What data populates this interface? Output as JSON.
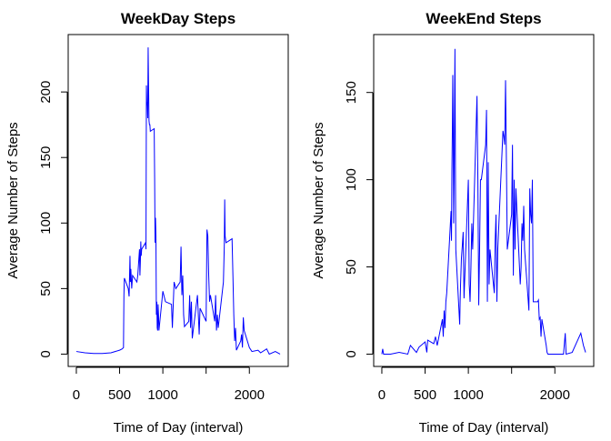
{
  "chart_data": [
    {
      "type": "line",
      "title": "WeekDay Steps",
      "x_label": "Time of Day (interval)",
      "y_label": "Average Number of Steps",
      "color": "#0000ff",
      "x": [
        0,
        100,
        200,
        300,
        400,
        500,
        530,
        545,
        550,
        555,
        600,
        610,
        620,
        625,
        630,
        640,
        650,
        700,
        710,
        720,
        730,
        735,
        740,
        745,
        750,
        755,
        800,
        805,
        810,
        815,
        820,
        825,
        830,
        835,
        840,
        845,
        850,
        855,
        900,
        905,
        910,
        915,
        920,
        925,
        930,
        935,
        940,
        945,
        950,
        955,
        1000,
        1030,
        1100,
        1110,
        1130,
        1150,
        1200,
        1210,
        1220,
        1230,
        1240,
        1250,
        1300,
        1310,
        1320,
        1330,
        1340,
        1400,
        1410,
        1420,
        1430,
        1500,
        1510,
        1520,
        1530,
        1540,
        1550,
        1600,
        1610,
        1620,
        1630,
        1640,
        1700,
        1710,
        1715,
        1720,
        1730,
        1800,
        1810,
        1820,
        1830,
        1840,
        1850,
        1900,
        1910,
        1920,
        1930,
        1940,
        2000,
        2030,
        2100,
        2130,
        2200,
        2230,
        2300,
        2355
      ],
      "values": [
        2,
        1,
        0.5,
        0.5,
        1,
        3,
        4,
        5,
        45,
        58,
        50,
        44,
        75,
        55,
        65,
        50,
        60,
        55,
        60,
        70,
        80,
        60,
        70,
        86,
        75,
        80,
        85,
        80,
        205,
        190,
        192,
        180,
        234,
        205,
        178,
        175,
        175,
        170,
        172,
        135,
        85,
        104,
        90,
        30,
        40,
        20,
        18,
        38,
        30,
        18,
        48,
        40,
        38,
        20,
        55,
        50,
        55,
        82,
        45,
        60,
        30,
        21,
        25,
        45,
        20,
        40,
        12,
        45,
        30,
        15,
        35,
        25,
        95,
        90,
        60,
        40,
        45,
        25,
        45,
        18,
        30,
        20,
        55,
        82,
        118,
        90,
        85,
        88,
        60,
        30,
        10,
        20,
        3,
        10,
        15,
        5,
        28,
        18,
        5,
        2,
        3,
        1,
        4,
        0,
        2,
        0
      ],
      "xlim": [
        -94.2,
        2449.2
      ],
      "xticks": [
        0,
        500,
        1000,
        {
          "value": 1500,
          "label": null
        },
        2000
      ],
      "ylim": [
        -9.4,
        243.8
      ],
      "yticks": [
        0,
        50,
        100,
        150,
        200
      ]
    },
    {
      "type": "line",
      "title": "WeekEnd Steps",
      "x_label": "Time of Day (interval)",
      "y_label": "Average Number of Steps",
      "color": "#0000ff",
      "x": [
        0,
        10,
        20,
        100,
        200,
        300,
        330,
        400,
        430,
        500,
        520,
        530,
        600,
        620,
        640,
        700,
        710,
        720,
        730,
        740,
        750,
        800,
        805,
        810,
        815,
        820,
        825,
        830,
        835,
        840,
        845,
        850,
        855,
        900,
        905,
        910,
        920,
        930,
        940,
        950,
        1000,
        1010,
        1020,
        1030,
        1040,
        1050,
        1100,
        1110,
        1120,
        1130,
        1140,
        1150,
        1200,
        1210,
        1220,
        1230,
        1240,
        1250,
        1300,
        1310,
        1320,
        1330,
        1340,
        1400,
        1410,
        1420,
        1430,
        1440,
        1450,
        1500,
        1510,
        1520,
        1530,
        1540,
        1550,
        1600,
        1610,
        1620,
        1630,
        1640,
        1650,
        1700,
        1710,
        1720,
        1730,
        1740,
        1750,
        1800,
        1810,
        1820,
        1830,
        1840,
        1850,
        1900,
        1910,
        1920,
        2000,
        2100,
        2120,
        2130,
        2200,
        2300,
        2330,
        2355
      ],
      "values": [
        0,
        3,
        0,
        0,
        1,
        0,
        5,
        1,
        4,
        7,
        1,
        8,
        6,
        10,
        5,
        20,
        10,
        25,
        15,
        30,
        35,
        82,
        65,
        105,
        128,
        160,
        130,
        75,
        100,
        140,
        175,
        115,
        60,
        17,
        30,
        40,
        55,
        62,
        70,
        32,
        100,
        40,
        30,
        50,
        75,
        60,
        148,
        100,
        28,
        60,
        100,
        100,
        120,
        140,
        30,
        110,
        40,
        60,
        35,
        65,
        80,
        30,
        60,
        128,
        125,
        120,
        157,
        110,
        60,
        80,
        120,
        45,
        100,
        60,
        95,
        40,
        50,
        75,
        65,
        85,
        60,
        25,
        95,
        80,
        75,
        100,
        30,
        30,
        31,
        20,
        21,
        10,
        20,
        5,
        1,
        0,
        0,
        0,
        12,
        0,
        1,
        12,
        5,
        1
      ],
      "xlim": [
        -94.2,
        2449.2
      ],
      "xticks": [
        0,
        500,
        1000,
        {
          "value": 1500,
          "label": null
        },
        2000
      ],
      "ylim": [
        -7.05,
        183.2
      ],
      "yticks": [
        0,
        50,
        100,
        150
      ]
    }
  ]
}
